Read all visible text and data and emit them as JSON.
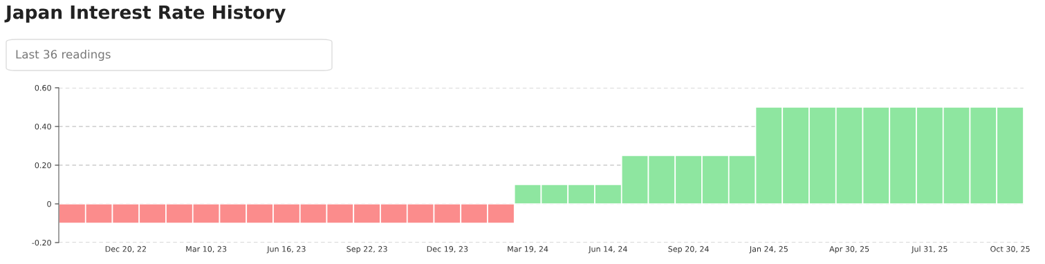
{
  "chart_data": {
    "type": "bar",
    "title": "Japan Interest Rate History",
    "annotations": [
      "Last 36 readings"
    ],
    "categories": [
      null,
      null,
      "Dec 20, 22",
      null,
      null,
      "Mar 10, 23",
      null,
      null,
      "Jun 16, 23",
      null,
      null,
      "Sep 22, 23",
      null,
      null,
      "Dec 19, 23",
      null,
      null,
      "Mar 19, 24",
      null,
      null,
      "Jun 14, 24",
      null,
      null,
      "Sep 20, 24",
      null,
      null,
      "Jan 24, 25",
      null,
      null,
      "Apr 30, 25",
      null,
      null,
      "Jul 31, 25",
      null,
      null,
      "Oct 30, 25"
    ],
    "values": [
      -0.1,
      -0.1,
      -0.1,
      -0.1,
      -0.1,
      -0.1,
      -0.1,
      -0.1,
      -0.1,
      -0.1,
      -0.1,
      -0.1,
      -0.1,
      -0.1,
      -0.1,
      -0.1,
      -0.1,
      0.1,
      0.1,
      0.1,
      0.1,
      0.25,
      0.25,
      0.25,
      0.25,
      0.25,
      0.5,
      0.5,
      0.5,
      0.5,
      0.5,
      0.5,
      0.5,
      0.5,
      0.5,
      0.5
    ],
    "colors": [
      "#fb8c8c",
      "#fb8c8c",
      "#fb8c8c",
      "#fb8c8c",
      "#fb8c8c",
      "#fb8c8c",
      "#fb8c8c",
      "#fb8c8c",
      "#fb8c8c",
      "#fb8c8c",
      "#fb8c8c",
      "#fb8c8c",
      "#fb8c8c",
      "#fb8c8c",
      "#fb8c8c",
      "#fb8c8c",
      "#fb8c8c",
      "#8ee6a0",
      "#8ee6a0",
      "#8ee6a0",
      "#8ee6a0",
      "#8ee6a0",
      "#8ee6a0",
      "#8ee6a0",
      "#8ee6a0",
      "#8ee6a0",
      "#8ee6a0",
      "#8ee6a0",
      "#8ee6a0",
      "#8ee6a0",
      "#8ee6a0",
      "#8ee6a0",
      "#8ee6a0",
      "#8ee6a0",
      "#8ee6a0",
      "#8ee6a0"
    ],
    "ylim": [
      -0.2,
      0.6
    ],
    "yticks": [
      {
        "value": -0.2,
        "label": "-0.20"
      },
      0,
      {
        "value": 0.2,
        "label": "0.20"
      },
      {
        "value": 0.4,
        "label": "0.40"
      },
      {
        "value": 0.6,
        "label": "0.60"
      }
    ],
    "grid": "y",
    "legend": false
  }
}
